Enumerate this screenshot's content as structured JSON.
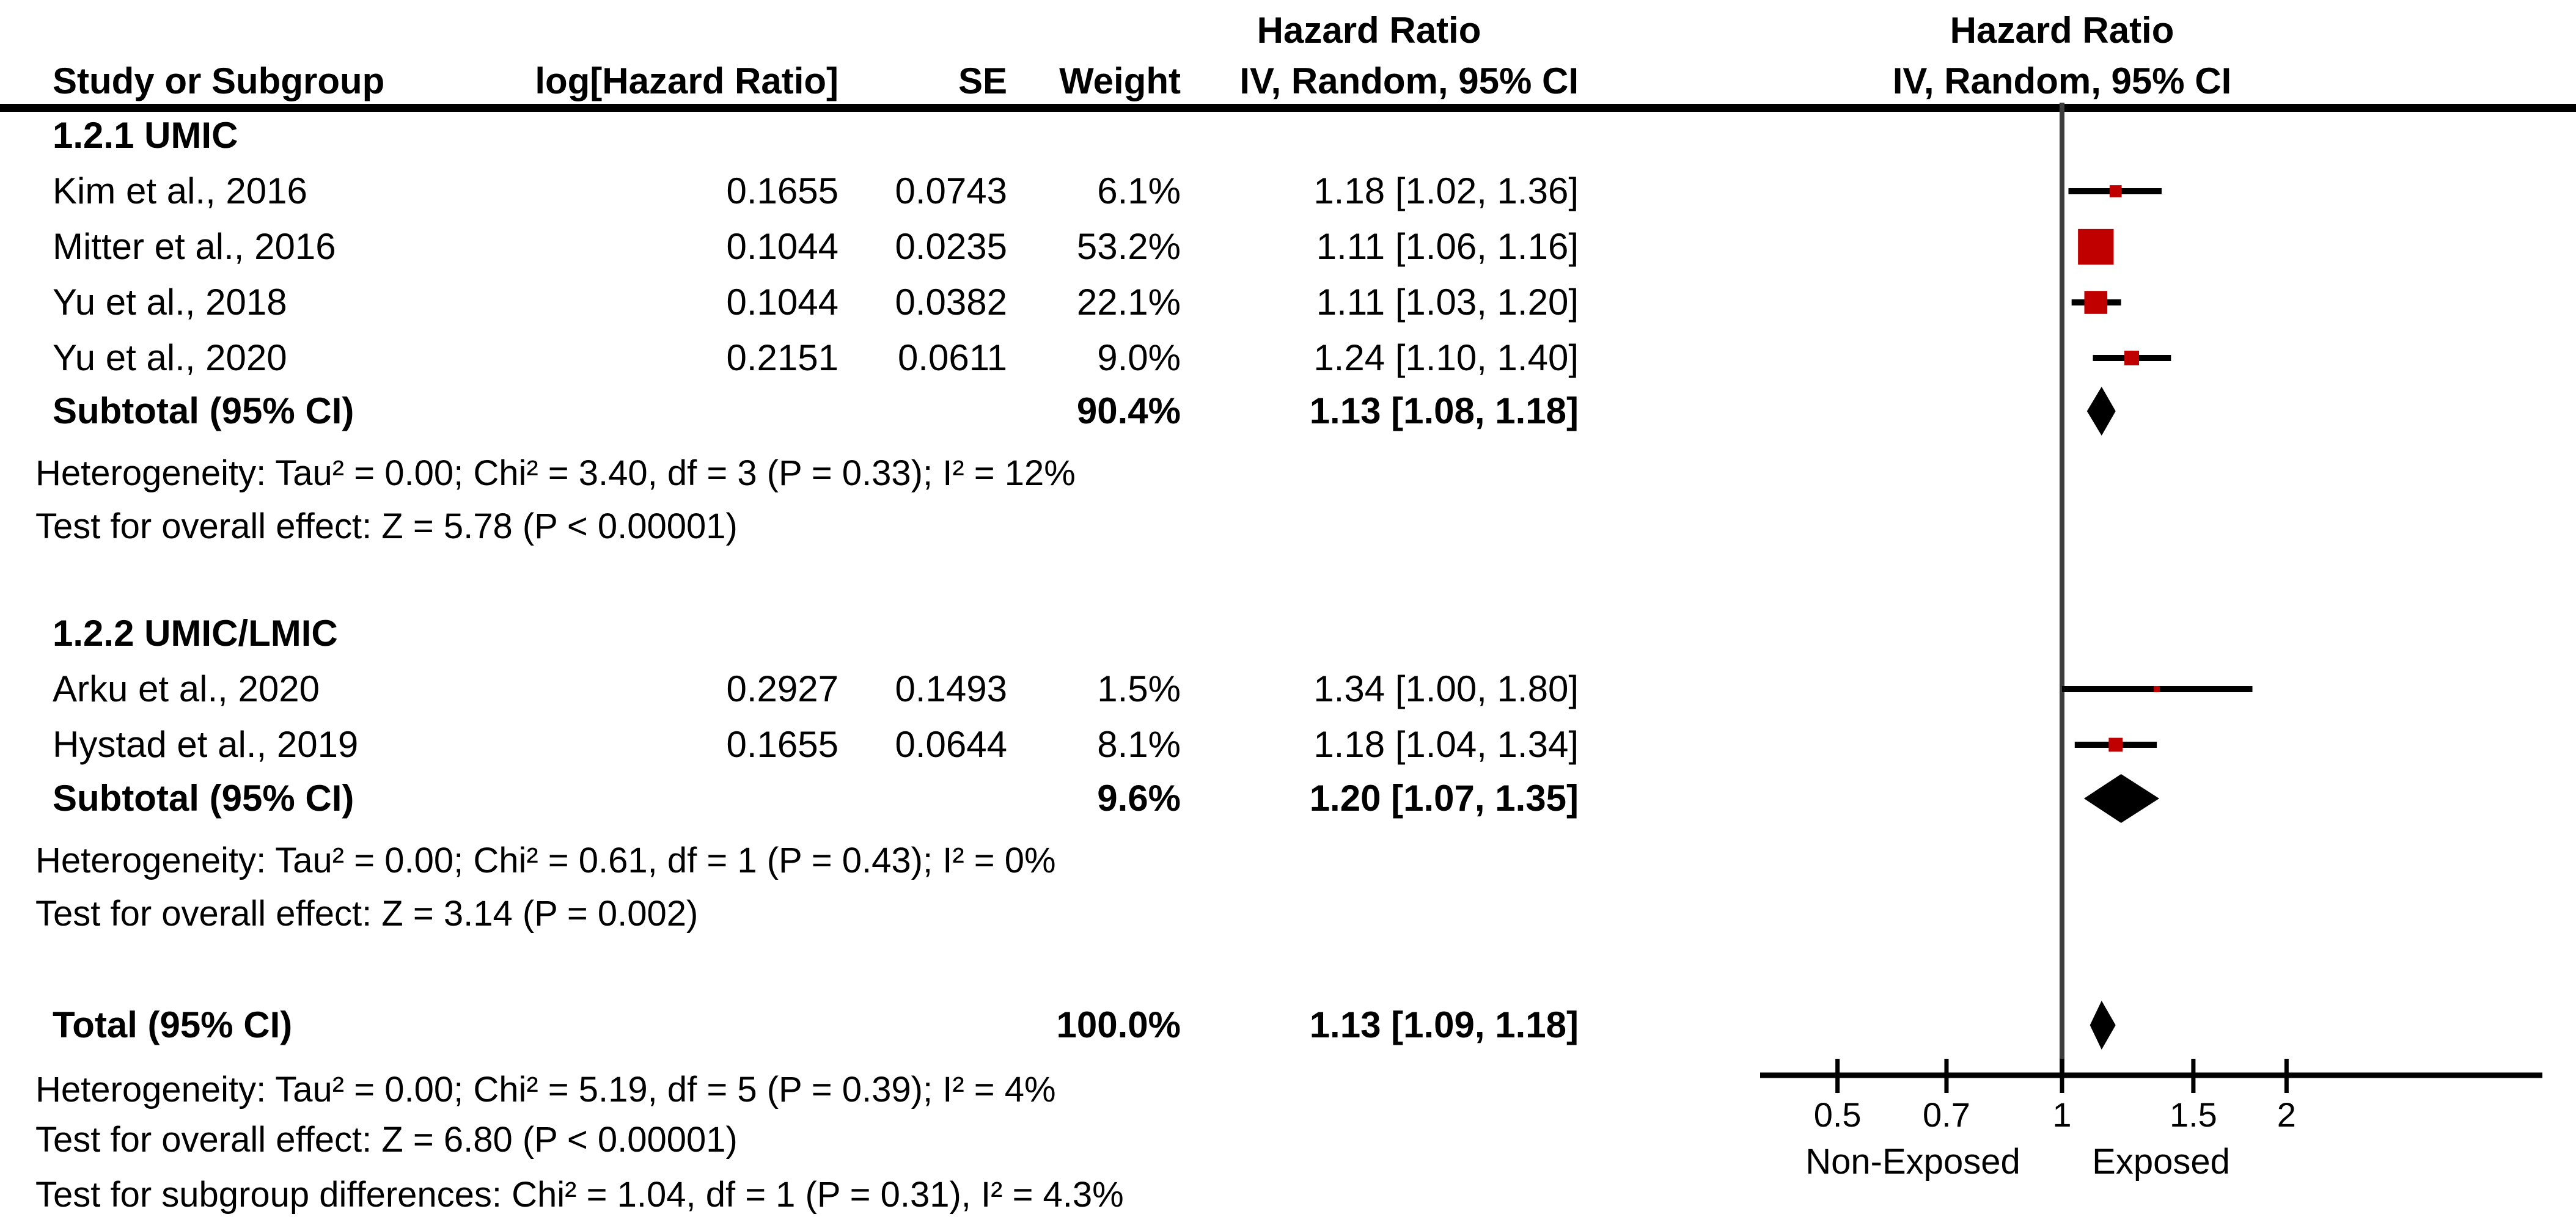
{
  "columns": {
    "study": "Study or Subgroup",
    "log_hr": "log[Hazard Ratio]",
    "se": "SE",
    "weight": "Weight",
    "effect_label": "Hazard Ratio",
    "method_ci": "IV, Random, 95% CI"
  },
  "plot_header": {
    "effect_label": "Hazard Ratio",
    "method_ci": "IV, Random, 95% CI"
  },
  "chart_data": {
    "type": "forest",
    "effect_measure": "Hazard Ratio",
    "model": "IV, Random, 95% CI",
    "axis": {
      "scale": "log",
      "ticks": [
        0.5,
        0.7,
        1,
        1.5,
        2
      ],
      "tick_labels": [
        "0.5",
        "0.7",
        "1",
        "1.5",
        "2"
      ],
      "left_label": "Non-Exposed",
      "right_label": "Exposed"
    },
    "colors": {
      "study_marker": "#c00000",
      "diamond": "#000000",
      "line": "#000000",
      "zero_line": "#3d3d3d"
    },
    "subgroups": [
      {
        "label": "1.2.1 UMIC",
        "studies": [
          {
            "name": "Kim et al., 2016",
            "log_hr": "0.1655",
            "se": "0.0743",
            "weight": "6.1%",
            "weight_value": 6.1,
            "ci_text": "1.18 [1.02, 1.36]",
            "hr": 1.18,
            "ci_low": 1.02,
            "ci_high": 1.36
          },
          {
            "name": "Mitter et al., 2016",
            "log_hr": "0.1044",
            "se": "0.0235",
            "weight": "53.2%",
            "weight_value": 53.2,
            "ci_text": "1.11 [1.06, 1.16]",
            "hr": 1.11,
            "ci_low": 1.06,
            "ci_high": 1.16
          },
          {
            "name": "Yu et al., 2018",
            "log_hr": "0.1044",
            "se": "0.0382",
            "weight": "22.1%",
            "weight_value": 22.1,
            "ci_text": "1.11 [1.03, 1.20]",
            "hr": 1.11,
            "ci_low": 1.03,
            "ci_high": 1.2
          },
          {
            "name": "Yu et al., 2020",
            "log_hr": "0.2151",
            "se": "0.0611",
            "weight": "9.0%",
            "weight_value": 9.0,
            "ci_text": "1.24 [1.10, 1.40]",
            "hr": 1.24,
            "ci_low": 1.1,
            "ci_high": 1.4
          }
        ],
        "subtotal": {
          "label": "Subtotal (95% CI)",
          "weight": "90.4%",
          "ci_text": "1.13 [1.08, 1.18]",
          "hr": 1.13,
          "ci_low": 1.08,
          "ci_high": 1.18
        },
        "heterogeneity": "Heterogeneity: Tau² = 0.00; Chi² = 3.40, df = 3 (P = 0.33); I² = 12%",
        "overall_effect": "Test for overall effect: Z = 5.78 (P < 0.00001)"
      },
      {
        "label": "1.2.2 UMIC/LMIC",
        "studies": [
          {
            "name": "Arku et al., 2020",
            "log_hr": "0.2927",
            "se": "0.1493",
            "weight": "1.5%",
            "weight_value": 1.5,
            "ci_text": "1.34 [1.00, 1.80]",
            "hr": 1.34,
            "ci_low": 1.0,
            "ci_high": 1.8
          },
          {
            "name": "Hystad et al., 2019",
            "log_hr": "0.1655",
            "se": "0.0644",
            "weight": "8.1%",
            "weight_value": 8.1,
            "ci_text": "1.18 [1.04, 1.34]",
            "hr": 1.18,
            "ci_low": 1.04,
            "ci_high": 1.34
          }
        ],
        "subtotal": {
          "label": "Subtotal (95% CI)",
          "weight": "9.6%",
          "ci_text": "1.20 [1.07, 1.35]",
          "hr": 1.2,
          "ci_low": 1.07,
          "ci_high": 1.35
        },
        "heterogeneity": "Heterogeneity: Tau² = 0.00; Chi² = 0.61, df = 1 (P = 0.43); I² = 0%",
        "overall_effect": "Test for overall effect: Z = 3.14 (P = 0.002)"
      }
    ],
    "total": {
      "label": "Total (95% CI)",
      "weight": "100.0%",
      "ci_text": "1.13 [1.09, 1.18]",
      "hr": 1.13,
      "ci_low": 1.09,
      "ci_high": 1.18
    },
    "total_heterogeneity": "Heterogeneity: Tau² = 0.00; Chi² = 5.19, df = 5 (P = 0.39); I² = 4%",
    "total_overall_effect": "Test for overall effect: Z = 6.80 (P < 0.00001)",
    "subgroup_differences": "Test for subgroup differences: Chi² = 1.04, df = 1 (P = 0.31), I² = 4.3%"
  }
}
